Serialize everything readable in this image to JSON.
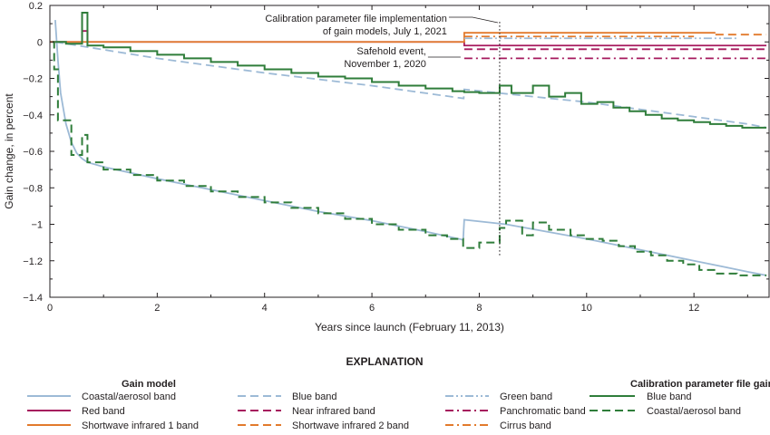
{
  "chart_data": {
    "type": "line",
    "xlabel": "Years since launch (February 11, 2013)",
    "ylabel": "Gain change, in percent",
    "xlim": [
      0,
      13.4
    ],
    "ylim": [
      -1.4,
      0.2
    ],
    "x_ticks": [
      0,
      2,
      4,
      6,
      8,
      10,
      12
    ],
    "y_ticks": [
      0.2,
      0,
      -0.2,
      -0.4,
      -0.6,
      -0.8,
      -1,
      -1.2,
      -1.4
    ],
    "y_tick_labels": [
      "0.2",
      "0",
      "−0.2",
      "−0.4",
      "−0.6",
      "−0.8",
      "−1",
      "−1.2",
      "−1.4"
    ],
    "grid": false,
    "colors": {
      "coastal": "#9dbad6",
      "blue": "#9dbad6",
      "green": "#9dbad6",
      "red": "#a6195d",
      "nir": "#a6195d",
      "pan": "#a6195d",
      "swir1": "#e27a2c",
      "swir2": "#e27a2c",
      "cirrus": "#e27a2c",
      "cpf": "#2f7d3a",
      "axis": "#231f20"
    },
    "annotations": [
      {
        "id": "cpf",
        "lines": [
          "Calibration parameter file implementation",
          "of gain models, July 1, 2021"
        ],
        "x": 8.38,
        "style": "dotted"
      },
      {
        "id": "safehold",
        "lines": [
          "Safehold event,",
          "November 1, 2020"
        ],
        "x": 7.72
      }
    ],
    "series": [
      {
        "key": "coastal_model",
        "group": "model",
        "color": "coastal",
        "dash": "solid",
        "step": false,
        "x": [
          0.1,
          0.15,
          0.2,
          0.3,
          0.4,
          0.5,
          0.6,
          0.7,
          1.0,
          2.0,
          3.0,
          4.0,
          5.0,
          6.0,
          7.0,
          7.7,
          7.72,
          8.5,
          10.0,
          11.0,
          12.0,
          12.5,
          13.0,
          13.35
        ],
        "y": [
          0.12,
          -0.1,
          -0.28,
          -0.45,
          -0.55,
          -0.61,
          -0.64,
          -0.66,
          -0.685,
          -0.75,
          -0.81,
          -0.87,
          -0.93,
          -0.98,
          -1.04,
          -1.085,
          -0.975,
          -1.0,
          -1.08,
          -1.14,
          -1.2,
          -1.23,
          -1.26,
          -1.28
        ]
      },
      {
        "key": "blue_model",
        "group": "model",
        "color": "blue",
        "dash": "dash",
        "step": false,
        "x": [
          0.1,
          2.0,
          4.0,
          6.0,
          7.71,
          7.72,
          9.0,
          10.0,
          11.0,
          12.0,
          13.0,
          13.35
        ],
        "y": [
          0.0,
          -0.09,
          -0.17,
          -0.24,
          -0.31,
          -0.26,
          -0.3,
          -0.33,
          -0.37,
          -0.41,
          -0.45,
          -0.47
        ]
      },
      {
        "key": "green_model",
        "group": "model",
        "color": "green",
        "dash": "dashdotdot",
        "step": false,
        "x": [
          7.72,
          12.8
        ],
        "y": [
          0.02,
          0.02
        ]
      },
      {
        "key": "red_model",
        "group": "model",
        "color": "red",
        "dash": "solid",
        "step": false,
        "x": [
          0.0,
          0.6,
          0.6,
          0.7,
          0.7,
          7.72,
          7.72,
          13.35
        ],
        "y": [
          0.0,
          0.0,
          0.06,
          0.06,
          0.0,
          0.0,
          -0.02,
          -0.02
        ]
      },
      {
        "key": "nir_model",
        "group": "model",
        "color": "nir",
        "dash": "dash",
        "step": false,
        "x": [
          7.72,
          13.35
        ],
        "y": [
          -0.04,
          -0.04
        ]
      },
      {
        "key": "pan_model",
        "group": "model",
        "color": "pan",
        "dash": "dashdot",
        "step": false,
        "x": [
          7.72,
          13.35
        ],
        "y": [
          -0.09,
          -0.09
        ]
      },
      {
        "key": "swir1_model",
        "group": "model",
        "color": "swir1",
        "dash": "solid",
        "step": false,
        "x": [
          0.0,
          7.72,
          7.72,
          12.4
        ],
        "y": [
          0.0,
          0.0,
          0.05,
          0.05
        ]
      },
      {
        "key": "swir2_model",
        "group": "model",
        "color": "swir2",
        "dash": "dash",
        "step": false,
        "x": [
          12.4,
          13.35
        ],
        "y": [
          0.04,
          0.04
        ]
      },
      {
        "key": "cirrus_model",
        "group": "model",
        "color": "cirrus",
        "dash": "dashdot",
        "step": false,
        "x": [
          7.72,
          12.0
        ],
        "y": [
          0.03,
          0.03
        ]
      },
      {
        "key": "blue_cpf",
        "group": "cpf",
        "color": "cpf",
        "dash": "solid",
        "step": true,
        "x": [
          0.1,
          0.3,
          0.6,
          0.7,
          1.0,
          1.5,
          2.0,
          2.5,
          3.0,
          3.5,
          4.0,
          4.5,
          5.0,
          5.5,
          6.0,
          6.5,
          7.0,
          7.5,
          7.72,
          8.0,
          8.38,
          8.6,
          9.0,
          9.3,
          9.6,
          9.9,
          10.2,
          10.5,
          10.8,
          11.1,
          11.4,
          11.7,
          12.0,
          12.3,
          12.6,
          12.9,
          13.35
        ],
        "y": [
          0.0,
          -0.01,
          0.16,
          -0.02,
          -0.03,
          -0.05,
          -0.07,
          -0.09,
          -0.11,
          -0.13,
          -0.15,
          -0.17,
          -0.19,
          -0.2,
          -0.22,
          -0.24,
          -0.255,
          -0.27,
          -0.275,
          -0.28,
          -0.24,
          -0.28,
          -0.24,
          -0.3,
          -0.28,
          -0.34,
          -0.33,
          -0.36,
          -0.38,
          -0.4,
          -0.42,
          -0.43,
          -0.44,
          -0.45,
          -0.46,
          -0.47,
          -0.47
        ]
      },
      {
        "key": "coastal_cpf",
        "group": "cpf",
        "color": "cpf",
        "dash": "dash",
        "step": true,
        "x": [
          0.05,
          0.08,
          0.15,
          0.4,
          0.6,
          0.7,
          1.0,
          1.5,
          2.0,
          2.5,
          3.0,
          3.5,
          4.0,
          4.5,
          5.0,
          5.5,
          6.0,
          6.5,
          7.0,
          7.4,
          7.7,
          8.0,
          8.38,
          8.5,
          8.8,
          9.0,
          9.3,
          9.7,
          10.0,
          10.3,
          10.6,
          10.9,
          11.2,
          11.5,
          11.8,
          12.1,
          12.4,
          12.8,
          13.35
        ],
        "y": [
          0.0,
          -0.15,
          -0.43,
          -0.62,
          -0.51,
          -0.66,
          -0.7,
          -0.73,
          -0.76,
          -0.79,
          -0.82,
          -0.85,
          -0.88,
          -0.91,
          -0.94,
          -0.97,
          -1.0,
          -1.03,
          -1.06,
          -1.08,
          -1.13,
          -1.1,
          -1.02,
          -0.98,
          -1.06,
          -0.99,
          -1.03,
          -1.06,
          -1.08,
          -1.09,
          -1.12,
          -1.15,
          -1.17,
          -1.2,
          -1.22,
          -1.25,
          -1.27,
          -1.28,
          -1.28
        ]
      }
    ],
    "legend": {
      "title": "EXPLANATION",
      "model_heading": "Gain model",
      "cpf_heading": "Calibration parameter file gain",
      "placement": "bottom",
      "model_entries": [
        {
          "key": "coastal_model",
          "label": "Coastal/aerosol band",
          "color": "coastal",
          "dash": "solid"
        },
        {
          "key": "blue_model",
          "label": "Blue band",
          "color": "blue",
          "dash": "dash"
        },
        {
          "key": "green_model",
          "label": "Green band",
          "color": "green",
          "dash": "dashdotdot"
        },
        {
          "key": "red_model",
          "label": "Red band",
          "color": "red",
          "dash": "solid"
        },
        {
          "key": "nir_model",
          "label": "Near infrared band",
          "color": "nir",
          "dash": "dash"
        },
        {
          "key": "pan_model",
          "label": "Panchromatic band",
          "color": "pan",
          "dash": "dashdot"
        },
        {
          "key": "swir1_model",
          "label": "Shortwave infrared 1 band",
          "color": "swir1",
          "dash": "solid"
        },
        {
          "key": "swir2_model",
          "label": "Shortwave infrared 2 band",
          "color": "swir2",
          "dash": "dash"
        },
        {
          "key": "cirrus_model",
          "label": "Cirrus band",
          "color": "cirrus",
          "dash": "dashdot"
        }
      ],
      "cpf_entries": [
        {
          "key": "blue_cpf",
          "label": "Blue band",
          "color": "cpf",
          "dash": "solid"
        },
        {
          "key": "coastal_cpf",
          "label": "Coastal/aerosol band",
          "color": "cpf",
          "dash": "dash"
        }
      ]
    }
  }
}
